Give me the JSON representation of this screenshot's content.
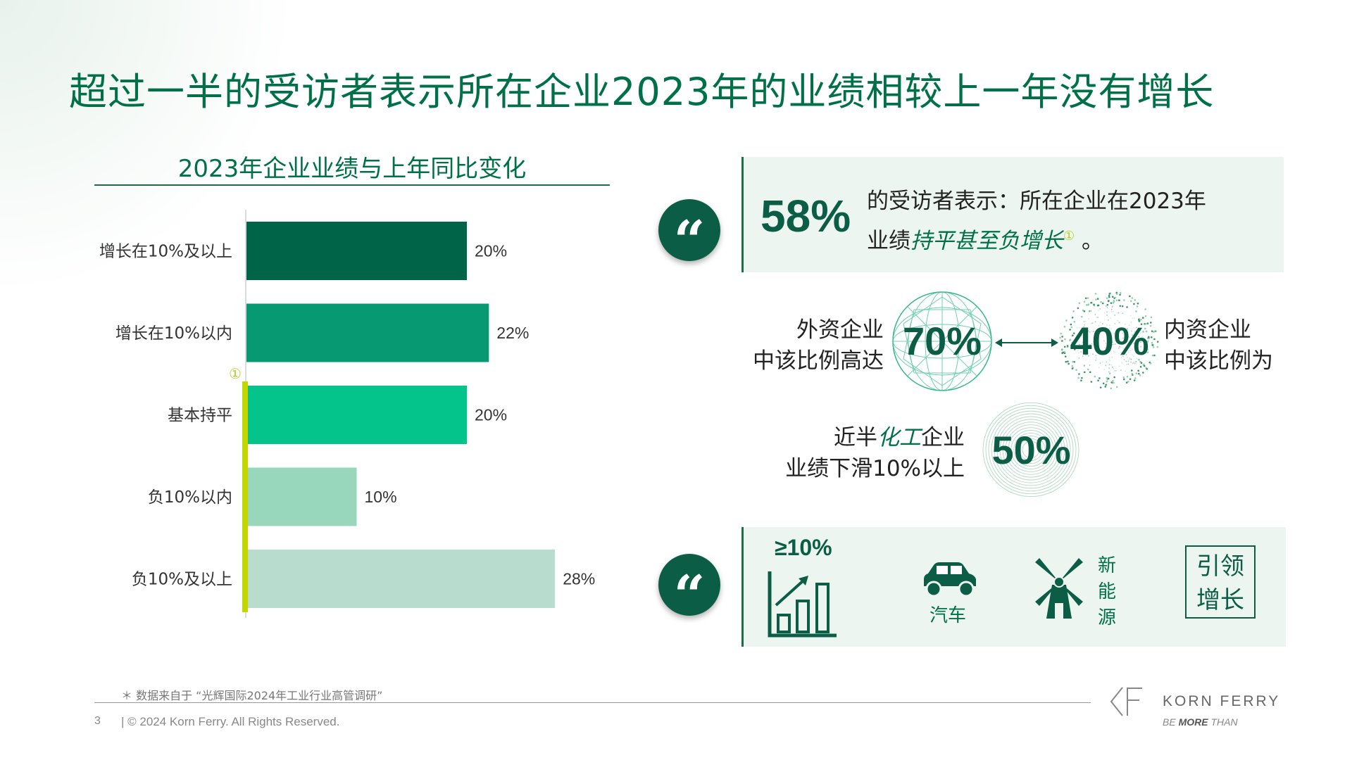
{
  "title": "超过一半的受访者表示所在企业2023年的业绩相较上一年没有增长",
  "colors": {
    "accent": "#007048",
    "dark_green": "#0b5e45",
    "lime": "#c4d600",
    "panel_bg": "#edf5f1"
  },
  "chart_data": {
    "type": "bar",
    "orientation": "horizontal",
    "title": "2023年企业业绩与上年同比变化",
    "categories": [
      "增长在10%及以上",
      "增长在10%以内",
      "基本持平",
      "负10%以内",
      "负10%及以上"
    ],
    "values": [
      20,
      22,
      20,
      10,
      28
    ],
    "value_labels": [
      "20%",
      "22%",
      "20%",
      "10%",
      "28%"
    ],
    "bar_colors": [
      "#006548",
      "#079a72",
      "#04c48b",
      "#99d7bd",
      "#b8dccd"
    ],
    "xlim": [
      0,
      100
    ],
    "unit": "%",
    "bracket_marker": "①",
    "bracket_covers": [
      "基本持平",
      "负10%以内",
      "负10%及以上"
    ],
    "grid": false,
    "legend": "none"
  },
  "quote_glyph": "“",
  "callout": {
    "value": "58%",
    "text_line1": "的受访者表示：所在企业在2023年",
    "text_line2_prefix": "业绩",
    "text_line2_emphasis": "持平甚至负增长",
    "footnote_mark": "①",
    "text_line2_suffix": " 。"
  },
  "foreign": {
    "label_line1": "外资企业",
    "label_line2": "中该比例高达",
    "value": "70%"
  },
  "domestic": {
    "label_line1": "内资企业",
    "label_line2": "中该比例为",
    "value": "40%"
  },
  "chemical": {
    "label_line1_prefix": "近半",
    "label_line1_emphasis": "化工",
    "label_line1_suffix": "企业",
    "label_line2": "业绩下滑10%以上",
    "value": "50%"
  },
  "growth_panel": {
    "growth_label": "≥10%",
    "car_label": "汽车",
    "new_energy_label": [
      "新",
      "能",
      "源"
    ],
    "lead_box": [
      "引领",
      "增长"
    ]
  },
  "footnote": "＊ 数据来自于 “光辉国际2024年工业行业高管调研”",
  "footer": {
    "page_number": "3",
    "copyright": "|  © 2024 Korn Ferry. All Rights Reserved."
  },
  "brand": {
    "name": "KORN FERRY",
    "tagline_prefix": "BE ",
    "tagline_bold": "MORE",
    "tagline_suffix": " THAN"
  }
}
